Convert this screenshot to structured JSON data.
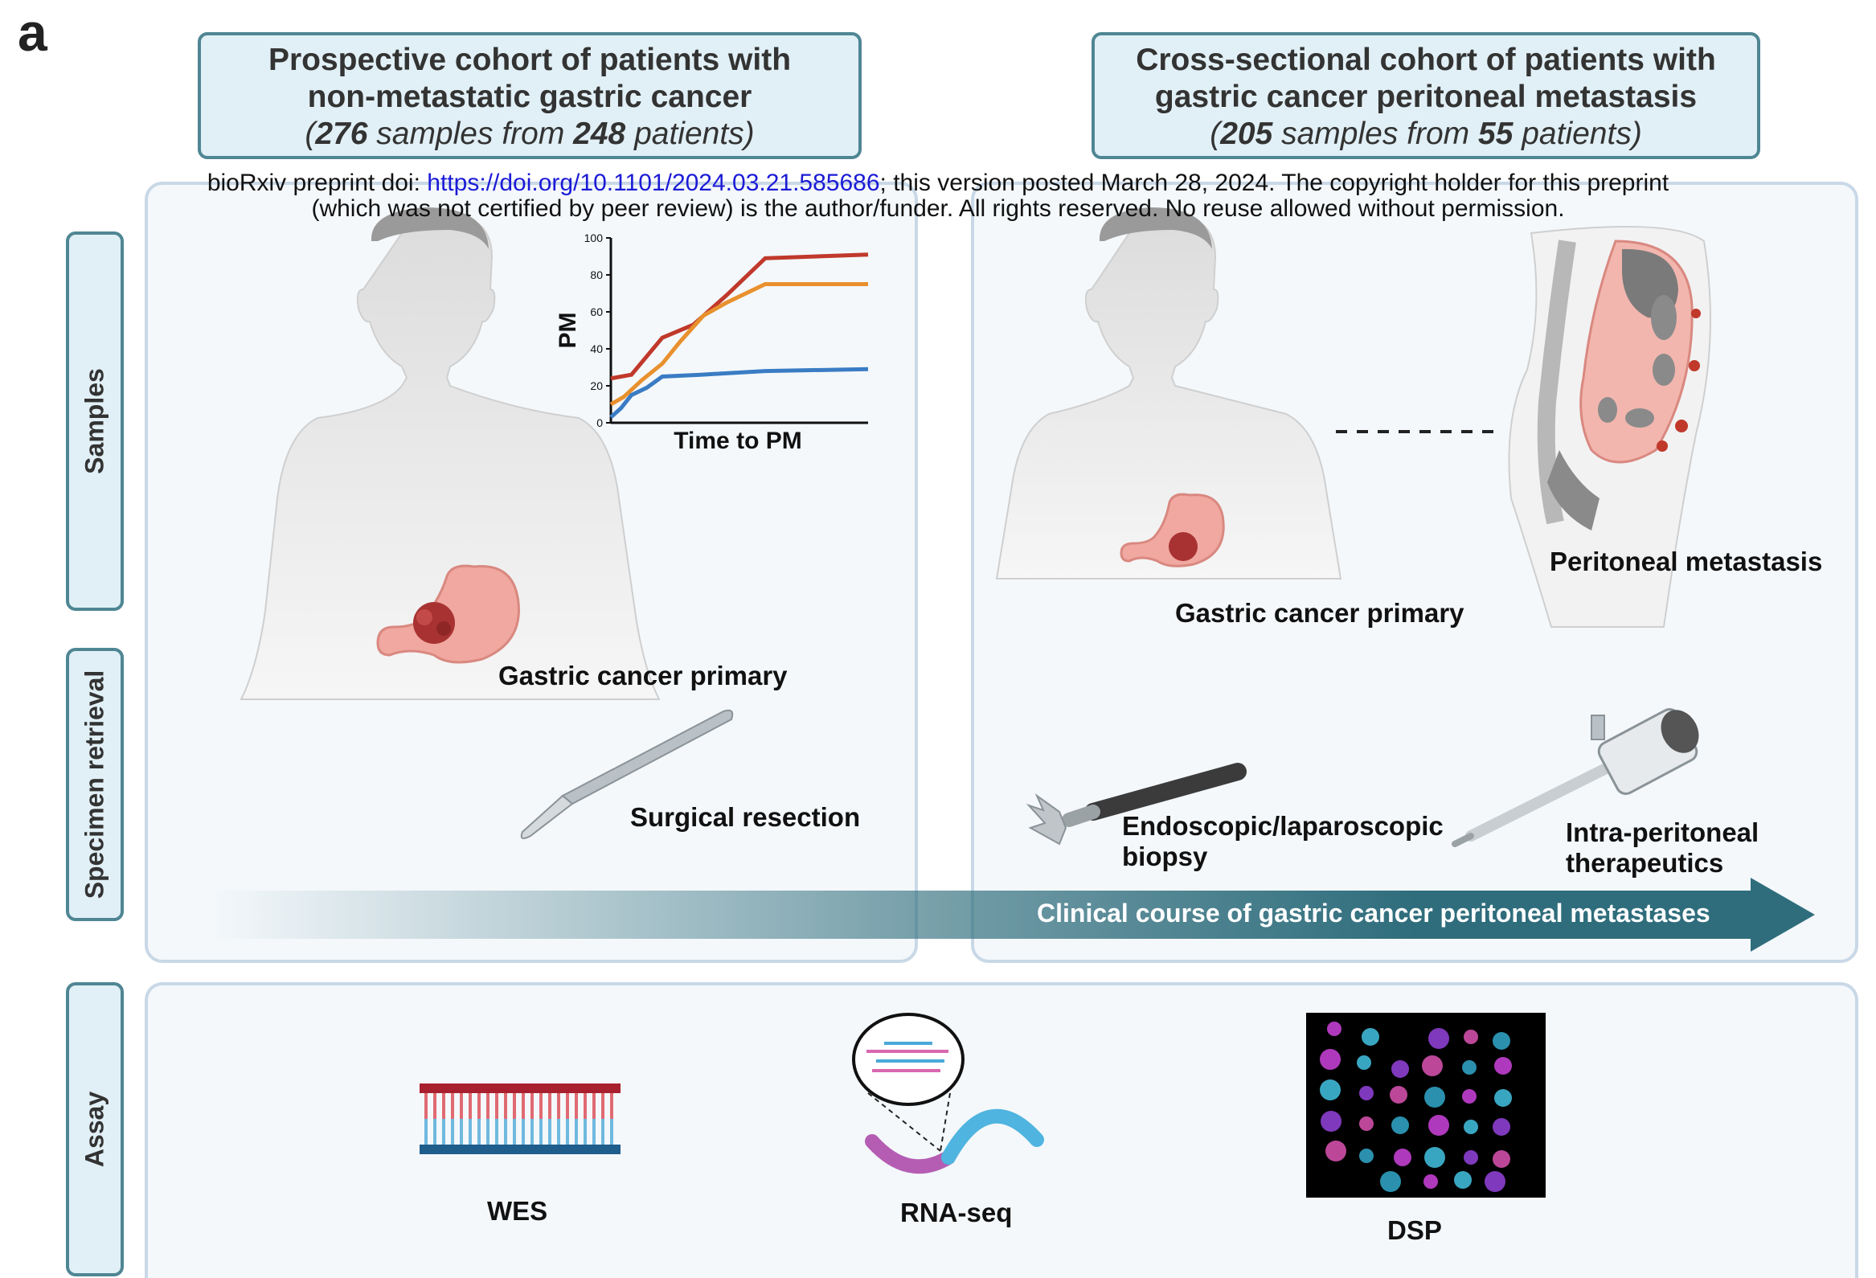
{
  "panel_letter": "a",
  "notice": {
    "prefix": "bioRxiv preprint doi: ",
    "link": "https://doi.org/10.1101/2024.03.21.585686",
    "suffix": "; this version posted March 28, 2024. The copyright holder for this preprint",
    "line2": "(which was not certified by peer review) is the author/funder. All rights reserved. No reuse allowed without permission."
  },
  "cohort_left": {
    "title_line1": "Prospective cohort of patients with",
    "title_line2": "non-metastatic gastric cancer",
    "open": "(",
    "samples": "276",
    "mid": " samples from ",
    "patients": "248",
    "close": " patients)"
  },
  "cohort_right": {
    "title_line1": "Cross-sectional cohort of patients with",
    "title_line2": "gastric cancer peritoneal metastasis",
    "open": "(",
    "samples": "205",
    "mid": " samples from ",
    "patients": "55",
    "close": " patients)"
  },
  "side_tabs": {
    "samples": "Samples",
    "specimen": "Specimen retrieval",
    "assay": "Assay"
  },
  "labels": {
    "gastric_primary_left": "Gastric cancer primary",
    "surgical_resection": "Surgical resection",
    "gastric_primary_right": "Gastric cancer primary",
    "peritoneal_metastasis": "Peritoneal metastasis",
    "biopsy_line1": "Endoscopic/laparoscopic",
    "biopsy_line2": "biopsy",
    "ip_line1": "Intra-peritoneal",
    "ip_line2": "therapeutics",
    "clinical_course": "Clinical course of gastric cancer peritoneal metastases",
    "wes": "WES",
    "rnaseq": "RNA-seq",
    "dsp": "DSP"
  },
  "colors": {
    "accent_teal": "#2f6d7c",
    "box_fill": "#e1f0f6",
    "box_border": "#4f8694",
    "series_red": "#c0392b",
    "series_orange": "#e8912e",
    "series_blue": "#3a7cc4"
  },
  "chart_data": {
    "type": "line",
    "title": "",
    "xlabel": "Time to PM",
    "ylabel": "PM",
    "ylim": [
      0,
      100
    ],
    "yticks": [
      "0",
      "20",
      "40",
      "60",
      "80",
      "100"
    ],
    "step": true,
    "series": [
      {
        "color": "#c0392b",
        "x": [
          0,
          0.08,
          0.08,
          0.2,
          0.2,
          0.32,
          0.32,
          0.45,
          0.45,
          0.6,
          0.6,
          1.0
        ],
        "y": [
          24,
          26,
          26,
          46,
          46,
          53,
          53,
          69,
          69,
          89,
          89,
          91
        ]
      },
      {
        "color": "#e8912e",
        "x": [
          0,
          0.05,
          0.05,
          0.12,
          0.12,
          0.2,
          0.2,
          0.27,
          0.27,
          0.36,
          0.36,
          0.45,
          0.45,
          0.6,
          0.6,
          1.0
        ],
        "y": [
          10,
          14,
          14,
          23,
          23,
          32,
          32,
          44,
          44,
          58,
          58,
          65,
          65,
          75,
          75,
          75
        ]
      },
      {
        "color": "#3a7cc4",
        "x": [
          0,
          0.04,
          0.04,
          0.08,
          0.08,
          0.14,
          0.14,
          0.2,
          0.2,
          0.35,
          0.35,
          0.6,
          0.6,
          1.0
        ],
        "y": [
          3,
          8,
          8,
          15,
          15,
          19,
          19,
          25,
          25,
          26,
          26,
          28,
          28,
          29
        ]
      }
    ]
  }
}
